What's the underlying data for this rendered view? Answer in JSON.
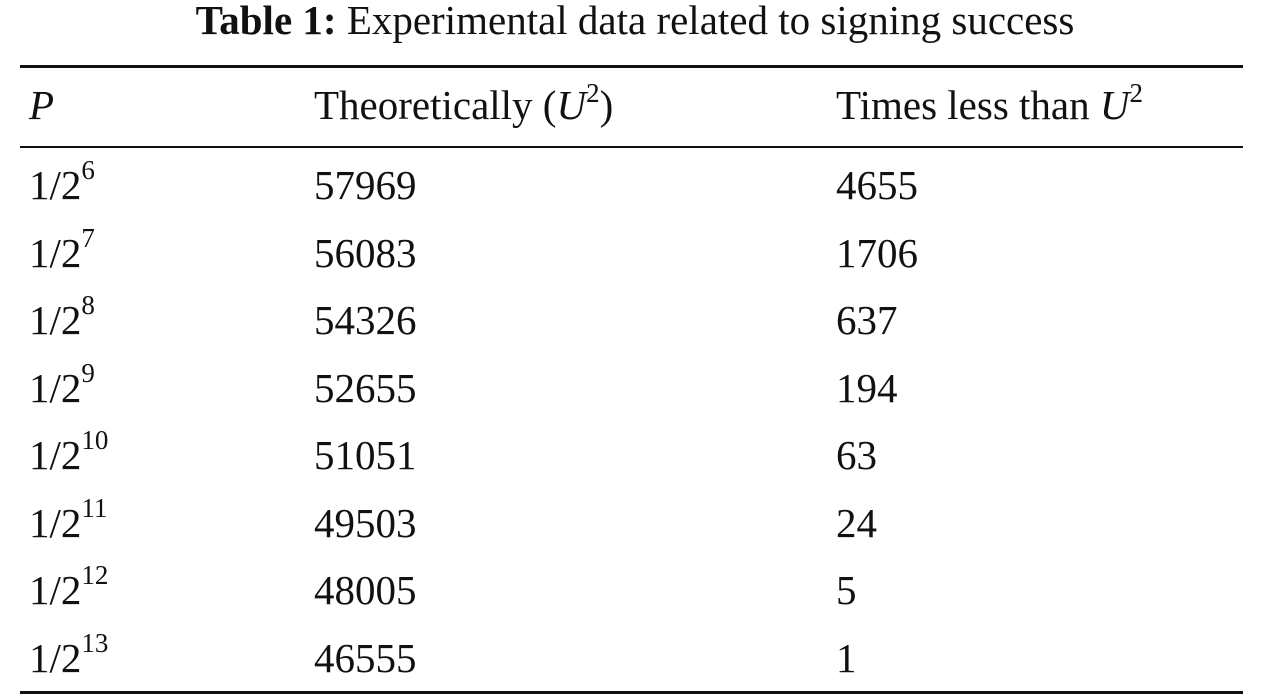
{
  "caption": {
    "label": "Table 1:",
    "text": "Experimental data related to signing success"
  },
  "table": {
    "headers": {
      "p": "P",
      "theoretical_prefix": "Theoretically (",
      "theoretical_var": "U",
      "theoretical_exp": "2",
      "theoretical_suffix": ")",
      "times_prefix": "Times less than ",
      "times_var": "U",
      "times_exp": "2"
    },
    "rows": [
      {
        "p_base": "1/2",
        "p_exp": "6",
        "theoretical": "57969",
        "times": "4655"
      },
      {
        "p_base": "1/2",
        "p_exp": "7",
        "theoretical": "56083",
        "times": "1706"
      },
      {
        "p_base": "1/2",
        "p_exp": "8",
        "theoretical": "54326",
        "times": "637"
      },
      {
        "p_base": "1/2",
        "p_exp": "9",
        "theoretical": "52655",
        "times": "194"
      },
      {
        "p_base": "1/2",
        "p_exp": "10",
        "theoretical": "51051",
        "times": "63"
      },
      {
        "p_base": "1/2",
        "p_exp": "11",
        "theoretical": "49503",
        "times": "24"
      },
      {
        "p_base": "1/2",
        "p_exp": "12",
        "theoretical": "48005",
        "times": "5"
      },
      {
        "p_base": "1/2",
        "p_exp": "13",
        "theoretical": "46555",
        "times": "1"
      }
    ]
  }
}
